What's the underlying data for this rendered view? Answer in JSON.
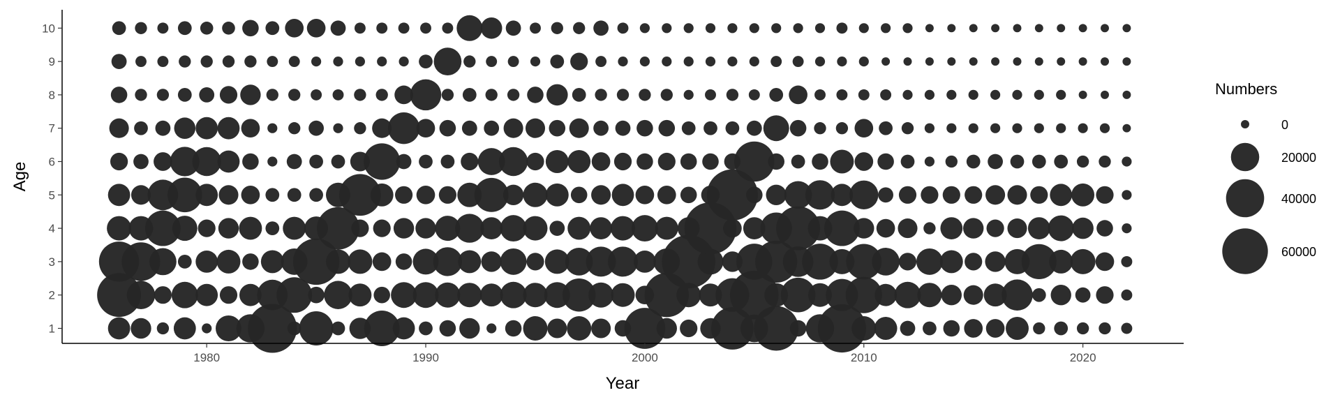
{
  "chart_data": {
    "type": "scatter",
    "subtype": "bubble",
    "xlabel": "Year",
    "ylabel": "Age",
    "x_ticks": [
      1980,
      1990,
      2000,
      2010,
      2020
    ],
    "y_ticks": [
      1,
      2,
      3,
      4,
      5,
      6,
      7,
      8,
      9,
      10
    ],
    "xlim": [
      1973.4,
      2024.6
    ],
    "ylim": [
      0.55,
      10.55
    ],
    "point_color": "#262626",
    "grid": false,
    "legend": {
      "title": "Numbers",
      "position": "right",
      "entries": [
        {
          "label": "0",
          "value": 500
        },
        {
          "label": "20000",
          "value": 20000
        },
        {
          "label": "40000",
          "value": 40000
        },
        {
          "label": "60000",
          "value": 60000
        }
      ]
    },
    "years": [
      1976,
      1977,
      1978,
      1979,
      1980,
      1981,
      1982,
      1983,
      1984,
      1985,
      1986,
      1987,
      1988,
      1989,
      1990,
      1991,
      1992,
      1993,
      1994,
      1995,
      1996,
      1997,
      1998,
      1999,
      2000,
      2001,
      2002,
      2003,
      2004,
      2005,
      2006,
      2007,
      2008,
      2009,
      2010,
      2011,
      2012,
      2013,
      2014,
      2015,
      2016,
      2017,
      2018,
      2019,
      2020,
      2021,
      2022
    ],
    "ages": [
      1,
      2,
      3,
      4,
      5,
      6,
      7,
      8,
      9,
      10
    ],
    "values_by_age": {
      "1": [
        11000,
        9000,
        2000,
        11000,
        1000,
        16000,
        20000,
        70000,
        3000,
        31000,
        3000,
        10000,
        34000,
        11000,
        3000,
        5000,
        9000,
        1000,
        5000,
        14000,
        8000,
        14000,
        8000,
        5000,
        47000,
        9000,
        6000,
        9000,
        51000,
        19000,
        57000,
        5000,
        20000,
        68000,
        14000,
        12000,
        4000,
        3000,
        5000,
        7000,
        7000,
        12000,
        2000,
        3000,
        2000,
        2000,
        1500
      ],
      "2": [
        55000,
        20000,
        6000,
        17000,
        11000,
        6000,
        11000,
        24000,
        34000,
        5000,
        20000,
        12000,
        5000,
        16000,
        16000,
        15000,
        14000,
        12000,
        17000,
        14000,
        16000,
        29000,
        15000,
        13000,
        7000,
        56000,
        14000,
        12000,
        30000,
        69000,
        13000,
        32000,
        13000,
        27000,
        36000,
        11000,
        17000,
        14000,
        9000,
        8000,
        12000,
        25000,
        3000,
        9000,
        4000,
        6000,
        1500
      ],
      "3": [
        45000,
        41000,
        18000,
        3000,
        11000,
        13000,
        5000,
        12000,
        17000,
        62000,
        14000,
        14000,
        7000,
        5000,
        16000,
        21000,
        12000,
        9000,
        17000,
        6000,
        14000,
        19000,
        23000,
        23000,
        11000,
        17000,
        85000,
        16000,
        9000,
        35000,
        50000,
        24000,
        35000,
        15000,
        34000,
        19000,
        6000,
        17000,
        12000,
        6000,
        9000,
        15000,
        33000,
        13000,
        15000,
        7000,
        1500
      ],
      "4": [
        14000,
        14000,
        34000,
        15000,
        6000,
        9000,
        12000,
        3000,
        12000,
        13000,
        51000,
        6000,
        6000,
        9000,
        9000,
        15000,
        21000,
        11000,
        17000,
        14000,
        4000,
        12000,
        11000,
        14000,
        17000,
        12000,
        11000,
        80000,
        7000,
        11000,
        26000,
        55000,
        14000,
        34000,
        9000,
        7000,
        8000,
        2000,
        11000,
        9000,
        6000,
        8000,
        11000,
        16000,
        10000,
        5000,
        1000
      ],
      "5": [
        11000,
        8000,
        24000,
        32000,
        11000,
        8000,
        7000,
        3000,
        3000,
        3000,
        14000,
        49000,
        12000,
        6000,
        7000,
        6000,
        14000,
        31000,
        9000,
        14000,
        12000,
        5000,
        8000,
        11000,
        7000,
        7000,
        5000,
        7000,
        77000,
        5000,
        9000,
        19000,
        22000,
        11000,
        21000,
        4000,
        6000,
        6000,
        6000,
        6000,
        8000,
        8000,
        6000,
        11000,
        12000,
        6000,
        1000
      ],
      "6": [
        6000,
        4000,
        7000,
        22000,
        21000,
        11000,
        5000,
        1000,
        4000,
        3000,
        3000,
        8000,
        36000,
        4000,
        3000,
        3000,
        6000,
        18000,
        21000,
        6000,
        12000,
        12000,
        7000,
        6000,
        5000,
        6000,
        5000,
        5000,
        5000,
        45000,
        5000,
        3000,
        5000,
        13000,
        7000,
        5000,
        3000,
        1000,
        2000,
        3000,
        4000,
        3000,
        3000,
        3000,
        2000,
        2000,
        1000
      ],
      "7": [
        8000,
        3000,
        4000,
        10000,
        11000,
        11000,
        7000,
        1000,
        2000,
        4000,
        1000,
        2000,
        8000,
        26000,
        7000,
        5000,
        4000,
        4000,
        8000,
        8000,
        5000,
        8000,
        4000,
        4000,
        5000,
        5000,
        3000,
        3000,
        3000,
        4000,
        16000,
        5000,
        2000,
        2000,
        7000,
        3000,
        2000,
        1000,
        1000,
        1000,
        1000,
        1000,
        1000,
        1000,
        1000,
        1000,
        500
      ],
      "8": [
        5000,
        2000,
        2000,
        3000,
        4000,
        6000,
        9000,
        2000,
        2000,
        1500,
        1500,
        2000,
        2000,
        7000,
        25000,
        2000,
        3000,
        2000,
        2000,
        5000,
        10000,
        3000,
        2000,
        2000,
        2000,
        2000,
        1000,
        1500,
        2000,
        1500,
        3000,
        7000,
        1500,
        1500,
        1500,
        1500,
        1000,
        1000,
        1000,
        1000,
        1000,
        1000,
        1000,
        1000,
        500,
        500,
        500
      ],
      "9": [
        4000,
        1500,
        1500,
        2000,
        2000,
        2000,
        2000,
        1500,
        1500,
        1000,
        1000,
        1000,
        1000,
        1000,
        3000,
        19000,
        2000,
        1500,
        1500,
        1000,
        3000,
        6000,
        1500,
        1000,
        1000,
        1000,
        1000,
        1000,
        1000,
        1000,
        1500,
        1500,
        1000,
        1000,
        1000,
        500,
        500,
        500,
        500,
        500,
        500,
        500,
        500,
        500,
        500,
        500,
        500
      ],
      "10": [
        3000,
        2000,
        1500,
        3000,
        2500,
        2500,
        5000,
        3000,
        7000,
        7000,
        4000,
        1500,
        1500,
        1500,
        1500,
        1500,
        16000,
        10000,
        4000,
        1500,
        2000,
        2000,
        4000,
        1500,
        1000,
        1000,
        1000,
        1000,
        1000,
        1000,
        1000,
        1000,
        1000,
        1500,
        1000,
        1000,
        1000,
        500,
        500,
        500,
        500,
        500,
        500,
        500,
        500,
        500,
        500
      ]
    }
  }
}
